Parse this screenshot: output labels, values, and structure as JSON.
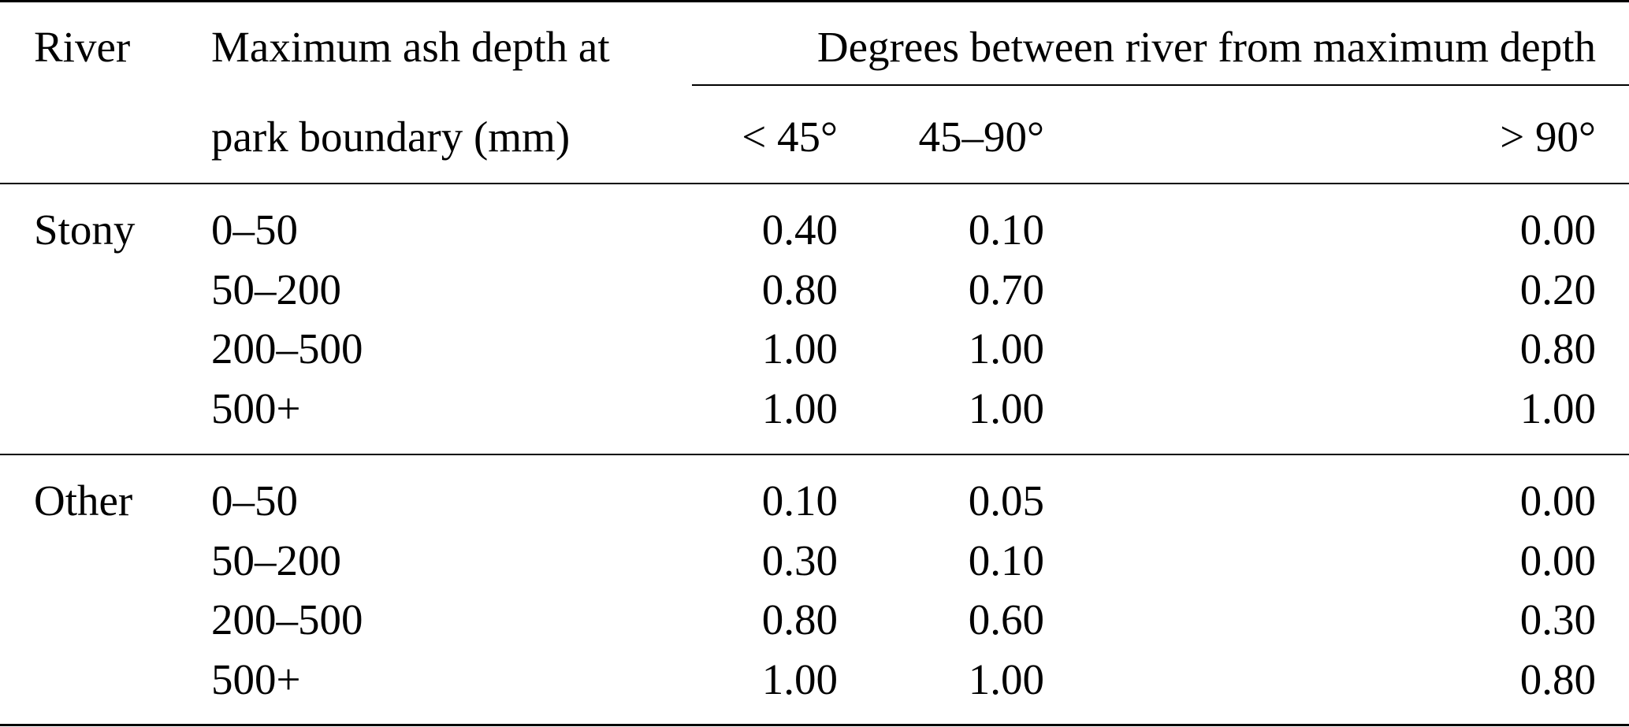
{
  "table": {
    "header": {
      "river": "River",
      "depth_line1": "Maximum ash depth at",
      "depth_line2": "park boundary (mm)",
      "degrees_group": "Degrees between river from maximum depth",
      "sub_columns": [
        "< 45°",
        "45–90°",
        "> 90°"
      ]
    },
    "groups": [
      {
        "river": "Stony",
        "rows": [
          {
            "depth": "0–50",
            "values": [
              "0.40",
              "0.10",
              "0.00"
            ]
          },
          {
            "depth": "50–200",
            "values": [
              "0.80",
              "0.70",
              "0.20"
            ]
          },
          {
            "depth": "200–500",
            "values": [
              "1.00",
              "1.00",
              "0.80"
            ]
          },
          {
            "depth": "500+",
            "values": [
              "1.00",
              "1.00",
              "1.00"
            ]
          }
        ]
      },
      {
        "river": "Other",
        "rows": [
          {
            "depth": "0–50",
            "values": [
              "0.10",
              "0.05",
              "0.00"
            ]
          },
          {
            "depth": "50–200",
            "values": [
              "0.30",
              "0.10",
              "0.00"
            ]
          },
          {
            "depth": "200–500",
            "values": [
              "0.80",
              "0.60",
              "0.30"
            ]
          },
          {
            "depth": "500+",
            "values": [
              "1.00",
              "1.00",
              "0.80"
            ]
          }
        ]
      }
    ]
  }
}
